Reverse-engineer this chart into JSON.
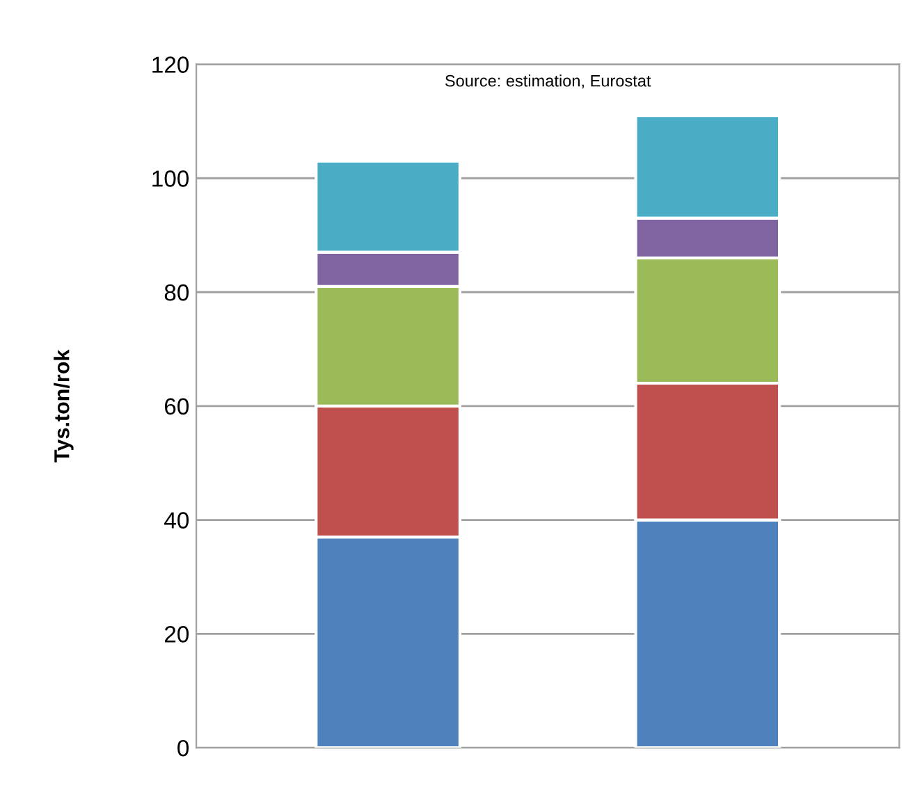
{
  "chart_data": {
    "type": "bar",
    "stacked": true,
    "ylabel": "Tys.ton/rok",
    "categories": [
      null,
      null
    ],
    "series": [
      {
        "color": "#4f81bd",
        "values": [
          37,
          40
        ]
      },
      {
        "color": "#c0504d",
        "values": [
          23,
          24
        ]
      },
      {
        "color": "#9bbb59",
        "values": [
          21,
          22
        ]
      },
      {
        "color": "#8064a2",
        "values": [
          6,
          7
        ]
      },
      {
        "color": "#4bacc6",
        "values": [
          16,
          18
        ]
      }
    ],
    "ylim": [
      0,
      120
    ],
    "yticks": [
      0,
      20,
      40,
      60,
      80,
      100,
      120
    ],
    "grid": "y",
    "annotations": [
      "Source: estimation, Eurostat"
    ]
  }
}
